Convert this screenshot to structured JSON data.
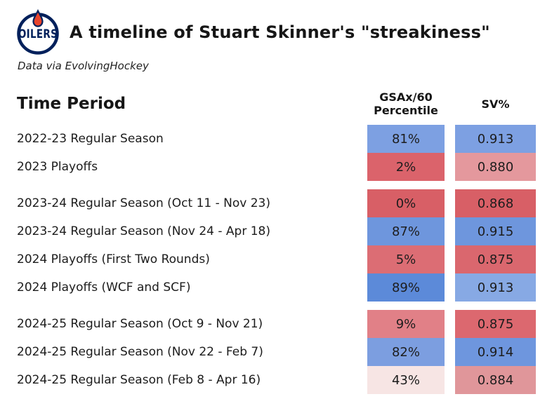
{
  "header": {
    "title": "A timeline of Stuart Skinner's \"streakiness\"",
    "subtitle": "Data via EvolvingHockey",
    "logo": {
      "team": "Edmonton Oilers",
      "wordmark": "OILERS",
      "ring_color": "#00205B",
      "drop_color": "#E8442C"
    }
  },
  "table_headers": {
    "time_period": "Time Period",
    "gsax_line1": "GSAx/60",
    "gsax_line2": "Percentile",
    "sv": "SV%"
  },
  "chart_data": {
    "type": "table",
    "title": "A timeline of Stuart Skinner's \"streakiness\"",
    "subtitle": "Data via EvolvingHockey",
    "columns": [
      "Time Period",
      "GSAx/60 Percentile",
      "SV%"
    ],
    "color_coding": "blue = high/good value, red = low/bad value, intensity scales with extremity",
    "groups": [
      [
        {
          "label": "2022-23 Regular Season",
          "percentile": 81,
          "percentile_label": "81%",
          "sv": 0.913,
          "sv_label": "0.913",
          "percentile_color": "#7DA0E2",
          "sv_color": "#7DA0E2"
        },
        {
          "label": "2023 Playoffs",
          "percentile": 2,
          "percentile_label": "2%",
          "sv": 0.88,
          "sv_label": "0.880",
          "percentile_color": "#DB636B",
          "sv_color": "#E4989D"
        }
      ],
      [
        {
          "label": "2023-24 Regular Season (Oct 11 - Nov 23)",
          "percentile": 0,
          "percentile_label": "0%",
          "sv": 0.868,
          "sv_label": "0.868",
          "percentile_color": "#D85F66",
          "sv_color": "#D85F66"
        },
        {
          "label": "2023-24 Regular Season (Nov 24 - Apr 18)",
          "percentile": 87,
          "percentile_label": "87%",
          "sv": 0.915,
          "sv_label": "0.915",
          "percentile_color": "#6E96DD",
          "sv_color": "#6E96DD"
        },
        {
          "label": "2024 Playoffs (First Two Rounds)",
          "percentile": 5,
          "percentile_label": "5%",
          "sv": 0.875,
          "sv_label": "0.875",
          "percentile_color": "#DC6D74",
          "sv_color": "#DA676E"
        },
        {
          "label": "2024 Playoffs (WCF and SCF)",
          "percentile": 89,
          "percentile_label": "89%",
          "sv": 0.913,
          "sv_label": "0.913",
          "percentile_color": "#5C8AD9",
          "sv_color": "#87A9E4"
        }
      ],
      [
        {
          "label": "2024-25 Regular Season (Oct 9 - Nov 21)",
          "percentile": 9,
          "percentile_label": "9%",
          "sv": 0.875,
          "sv_label": "0.875",
          "percentile_color": "#E18087",
          "sv_color": "#DC686F"
        },
        {
          "label": "2024-25 Regular Season (Nov 22 - Feb 7)",
          "percentile": 82,
          "percentile_label": "82%",
          "sv": 0.914,
          "sv_label": "0.914",
          "percentile_color": "#7C9EE0",
          "sv_color": "#6E96DE"
        },
        {
          "label": "2024-25 Regular Season (Feb 8 - Apr 16)",
          "percentile": 43,
          "percentile_label": "43%",
          "sv": 0.884,
          "sv_label": "0.884",
          "percentile_color": "#F7E5E4",
          "sv_color": "#E0969A"
        }
      ]
    ]
  }
}
